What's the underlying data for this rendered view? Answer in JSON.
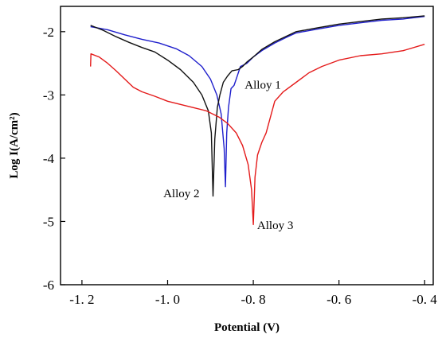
{
  "chart_data": {
    "type": "line",
    "title": "",
    "xlabel": "Potential (V)",
    "ylabel": "Log I(A/cm²)",
    "xlim": [
      -1.25,
      -0.38
    ],
    "ylim": [
      -6,
      -1.6
    ],
    "x_ticks": [
      -1.2,
      -1.0,
      -0.8,
      -0.6,
      -0.4
    ],
    "x_tick_labels": [
      "-1. 2",
      "-1. 0",
      "-0. 8",
      "-0. 6",
      "-0. 4"
    ],
    "y_ticks": [
      -6,
      -5,
      -4,
      -3,
      -2
    ],
    "y_tick_labels": [
      "-6",
      "-5",
      "-4",
      "-3",
      "-2"
    ],
    "grid": false,
    "legend": "none",
    "series": [
      {
        "name": "Alloy 1",
        "color": "#1f1fcc",
        "points": [
          [
            -1.18,
            -1.92
          ],
          [
            -1.14,
            -1.97
          ],
          [
            -1.1,
            -2.05
          ],
          [
            -1.06,
            -2.12
          ],
          [
            -1.02,
            -2.18
          ],
          [
            -0.98,
            -2.27
          ],
          [
            -0.95,
            -2.38
          ],
          [
            -0.92,
            -2.55
          ],
          [
            -0.9,
            -2.75
          ],
          [
            -0.885,
            -3.0
          ],
          [
            -0.875,
            -3.3
          ],
          [
            -0.868,
            -3.85
          ],
          [
            -0.865,
            -4.45
          ],
          [
            -0.862,
            -3.6
          ],
          [
            -0.858,
            -3.2
          ],
          [
            -0.852,
            -2.9
          ],
          [
            -0.845,
            -2.85
          ],
          [
            -0.84,
            -2.75
          ],
          [
            -0.83,
            -2.55
          ],
          [
            -0.815,
            -2.5
          ],
          [
            -0.8,
            -2.4
          ],
          [
            -0.78,
            -2.3
          ],
          [
            -0.75,
            -2.18
          ],
          [
            -0.72,
            -2.08
          ],
          [
            -0.7,
            -2.02
          ],
          [
            -0.65,
            -1.96
          ],
          [
            -0.6,
            -1.9
          ],
          [
            -0.55,
            -1.86
          ],
          [
            -0.5,
            -1.82
          ],
          [
            -0.45,
            -1.8
          ],
          [
            -0.4,
            -1.76
          ]
        ]
      },
      {
        "name": "Alloy 2",
        "color": "#111111",
        "points": [
          [
            -1.18,
            -1.9
          ],
          [
            -1.15,
            -1.98
          ],
          [
            -1.12,
            -2.08
          ],
          [
            -1.09,
            -2.17
          ],
          [
            -1.06,
            -2.25
          ],
          [
            -1.03,
            -2.32
          ],
          [
            -1.0,
            -2.45
          ],
          [
            -0.97,
            -2.6
          ],
          [
            -0.94,
            -2.8
          ],
          [
            -0.92,
            -3.0
          ],
          [
            -0.905,
            -3.25
          ],
          [
            -0.898,
            -3.6
          ],
          [
            -0.894,
            -4.6
          ],
          [
            -0.89,
            -3.7
          ],
          [
            -0.884,
            -3.2
          ],
          [
            -0.878,
            -3.0
          ],
          [
            -0.87,
            -2.8
          ],
          [
            -0.86,
            -2.7
          ],
          [
            -0.85,
            -2.62
          ],
          [
            -0.835,
            -2.6
          ],
          [
            -0.825,
            -2.55
          ],
          [
            -0.815,
            -2.48
          ],
          [
            -0.8,
            -2.4
          ],
          [
            -0.78,
            -2.28
          ],
          [
            -0.75,
            -2.16
          ],
          [
            -0.7,
            -2.0
          ],
          [
            -0.65,
            -1.94
          ],
          [
            -0.6,
            -1.88
          ],
          [
            -0.55,
            -1.84
          ],
          [
            -0.5,
            -1.8
          ],
          [
            -0.45,
            -1.78
          ],
          [
            -0.4,
            -1.75
          ]
        ]
      },
      {
        "name": "Alloy 3",
        "color": "#e41a1a",
        "points": [
          [
            -1.18,
            -2.55
          ],
          [
            -1.179,
            -2.35
          ],
          [
            -1.16,
            -2.4
          ],
          [
            -1.14,
            -2.5
          ],
          [
            -1.12,
            -2.62
          ],
          [
            -1.1,
            -2.75
          ],
          [
            -1.08,
            -2.88
          ],
          [
            -1.06,
            -2.95
          ],
          [
            -1.03,
            -3.02
          ],
          [
            -1.0,
            -3.1
          ],
          [
            -0.97,
            -3.15
          ],
          [
            -0.94,
            -3.2
          ],
          [
            -0.91,
            -3.25
          ],
          [
            -0.88,
            -3.35
          ],
          [
            -0.86,
            -3.45
          ],
          [
            -0.84,
            -3.6
          ],
          [
            -0.825,
            -3.8
          ],
          [
            -0.812,
            -4.1
          ],
          [
            -0.804,
            -4.5
          ],
          [
            -0.8,
            -5.05
          ],
          [
            -0.796,
            -4.3
          ],
          [
            -0.79,
            -3.95
          ],
          [
            -0.78,
            -3.75
          ],
          [
            -0.77,
            -3.6
          ],
          [
            -0.76,
            -3.35
          ],
          [
            -0.75,
            -3.1
          ],
          [
            -0.73,
            -2.95
          ],
          [
            -0.7,
            -2.8
          ],
          [
            -0.67,
            -2.65
          ],
          [
            -0.64,
            -2.55
          ],
          [
            -0.6,
            -2.45
          ],
          [
            -0.55,
            -2.38
          ],
          [
            -0.5,
            -2.35
          ],
          [
            -0.45,
            -2.3
          ],
          [
            -0.4,
            -2.2
          ]
        ]
      }
    ],
    "annotations": [
      {
        "text": "Alloy 1",
        "x": -0.82,
        "y": -2.9
      },
      {
        "text": "Alloy 2",
        "x": -1.01,
        "y": -4.62
      },
      {
        "text": "Alloy 3",
        "x": -0.791,
        "y": -5.12
      }
    ]
  }
}
